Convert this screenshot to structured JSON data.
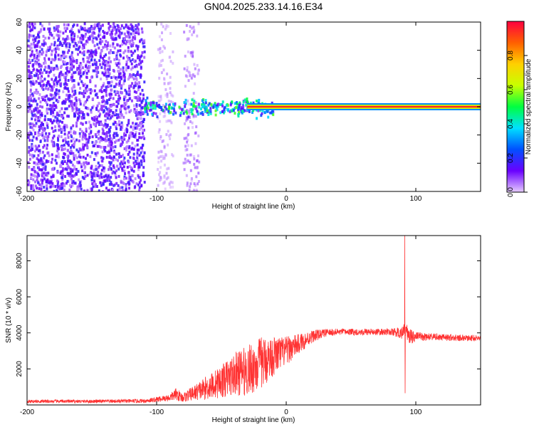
{
  "title": "GN04.2025.233.14.16.E34",
  "chart_data": [
    {
      "type": "heatmap",
      "xlabel": "Height of straight line (km)",
      "ylabel": "Frequency (Hz)",
      "xlim": [
        -200,
        150
      ],
      "ylim": [
        -60,
        60
      ],
      "xticks": [
        -200,
        -100,
        0,
        100
      ],
      "yticks": [
        -60,
        -40,
        -20,
        0,
        20,
        40,
        60
      ],
      "colorbar": {
        "label": "Normalized spectral amplitude",
        "range": [
          0,
          1
        ],
        "ticks": [
          0.0,
          0.2,
          0.4,
          0.6,
          0.8
        ],
        "tick_labels": [
          "0.0",
          "0.2",
          "0.4",
          "0.6",
          "0.8"
        ],
        "colors": [
          "#e6ccff",
          "#6a00ff",
          "#0050ff",
          "#00e0ff",
          "#00ff40",
          "#c8ff00",
          "#ffd000",
          "#ff6000",
          "#ff0040"
        ]
      },
      "features": [
        {
          "name": "broadband noise",
          "x_range": [
            -200,
            -110
          ],
          "freq_range": [
            -60,
            60
          ],
          "amplitude": 0.1
        },
        {
          "name": "broadband noise",
          "x_range": [
            -100,
            -88
          ],
          "freq_range": [
            -60,
            60
          ],
          "amplitude": 0.03
        },
        {
          "name": "broadband noise",
          "x_range": [
            -80,
            -68
          ],
          "freq_range": [
            -60,
            60
          ],
          "amplitude": 0.05
        },
        {
          "name": "spread signal",
          "x_range": [
            -110,
            -10
          ],
          "freq_range": [
            -8,
            8
          ],
          "amplitude": 0.3
        },
        {
          "name": "narrowband signal",
          "x_range": [
            -30,
            150
          ],
          "freq_range": [
            -1,
            1
          ],
          "amplitude": 0.95
        }
      ]
    },
    {
      "type": "line",
      "xlabel": "Height of straight line (km)",
      "ylabel": "SNR (10 * v/v)",
      "xlim": [
        -200,
        150
      ],
      "ylim": [
        0,
        9400
      ],
      "xticks": [
        -200,
        -100,
        0,
        100
      ],
      "yticks": [
        2000,
        4000,
        6000,
        8000
      ],
      "color": "#ff3333",
      "envelope": {
        "x": [
          -200,
          -150,
          -110,
          -100,
          -90,
          -85,
          -80,
          -70,
          -60,
          -50,
          -40,
          -30,
          -20,
          -10,
          0,
          10,
          20,
          30,
          40,
          60,
          80,
          90,
          92,
          95,
          100,
          120,
          150
        ],
        "mean": [
          200,
          200,
          220,
          300,
          400,
          600,
          400,
          700,
          1000,
          1300,
          1700,
          1900,
          2300,
          2700,
          3000,
          3400,
          3800,
          4000,
          4050,
          4050,
          4050,
          4000,
          4200,
          3800,
          3800,
          3750,
          3700
        ],
        "spread": [
          90,
          90,
          110,
          150,
          200,
          350,
          250,
          450,
          700,
          900,
          1200,
          1400,
          1500,
          1100,
          800,
          550,
          350,
          220,
          180,
          180,
          180,
          350,
          400,
          500,
          250,
          180,
          180
        ]
      },
      "spikes": [
        {
          "x": 91.5,
          "y": 9400
        },
        {
          "x": 91.8,
          "y": 650
        }
      ]
    }
  ]
}
